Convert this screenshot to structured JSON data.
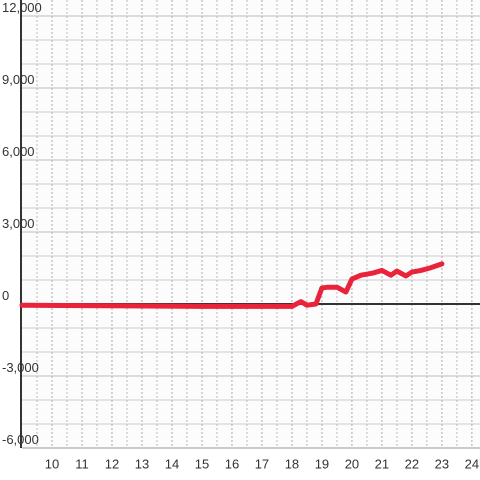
{
  "chart_data": {
    "type": "line",
    "x": [
      9,
      15,
      18,
      18.3,
      18.5,
      18.8,
      19.0,
      19.2,
      19.5,
      19.8,
      20.0,
      20.3,
      20.7,
      21.0,
      21.3,
      21.5,
      21.8,
      22.0,
      22.3,
      22.6,
      23.0
    ],
    "series": [
      {
        "color": "#e8233a",
        "values": [
          -50,
          -100,
          -100,
          100,
          -50,
          0,
          670,
          700,
          700,
          500,
          1040,
          1200,
          1290,
          1400,
          1200,
          1370,
          1170,
          1330,
          1400,
          1500,
          1670
        ]
      }
    ],
    "xlim": [
      9,
      24.27
    ],
    "ylim": [
      -6000,
      12000
    ],
    "xticks": [
      10,
      11,
      12,
      13,
      14,
      15,
      16,
      17,
      18,
      19,
      20,
      21,
      22,
      23,
      24
    ],
    "xminorticks": [
      9.5,
      10.5,
      11.5,
      12.5,
      13.5,
      14.5,
      15.5,
      16.5,
      17.5,
      18.5,
      19.5,
      20.5,
      21.5,
      22.5,
      23.5
    ],
    "yticks": [
      {
        "value": -6000,
        "label": "-6,000"
      },
      {
        "value": -3000,
        "label": "-3,000"
      },
      0,
      {
        "value": 3000,
        "label": "3,000"
      },
      {
        "value": 6000,
        "label": "6,000"
      },
      {
        "value": 9000,
        "label": "9,000"
      },
      {
        "value": 12000,
        "label": "12,000"
      }
    ],
    "yminorticks": [
      -5000,
      -4000,
      -2000,
      -1000,
      1000,
      2000,
      4000,
      5000,
      7000,
      8000,
      10000,
      11000
    ],
    "grid": true
  }
}
